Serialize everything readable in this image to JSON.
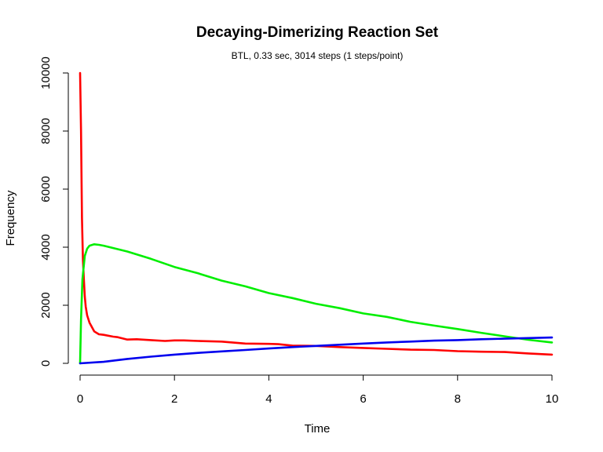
{
  "chart_data": {
    "type": "line",
    "title": "Decaying-Dimerizing Reaction Set",
    "subtitle": "BTL, 0.33 sec, 3014 steps (1 steps/point)",
    "xlabel": "Time",
    "ylabel": "Frequency",
    "xlim": [
      0,
      10
    ],
    "ylim": [
      0,
      10000
    ],
    "x_ticks": [
      "0",
      "2",
      "4",
      "6",
      "8",
      "10"
    ],
    "y_ticks": [
      "0",
      "2000",
      "4000",
      "6000",
      "8000",
      "10000"
    ],
    "grid": false,
    "legend": "none",
    "series": [
      {
        "color": "#ff0000",
        "points": [
          [
            0,
            10000
          ],
          [
            0.02,
            8000
          ],
          [
            0.04,
            5000
          ],
          [
            0.06,
            3600
          ],
          [
            0.08,
            2900
          ],
          [
            0.1,
            2300
          ],
          [
            0.12,
            1950
          ],
          [
            0.15,
            1650
          ],
          [
            0.2,
            1400
          ],
          [
            0.25,
            1250
          ],
          [
            0.3,
            1100
          ],
          [
            0.4,
            1000
          ],
          [
            0.5,
            980
          ],
          [
            0.7,
            920
          ],
          [
            0.8,
            900
          ],
          [
            1,
            820
          ],
          [
            1.2,
            830
          ],
          [
            1.5,
            800
          ],
          [
            1.8,
            770
          ],
          [
            2,
            790
          ],
          [
            2.2,
            790
          ],
          [
            2.5,
            770
          ],
          [
            3,
            750
          ],
          [
            3.5,
            680
          ],
          [
            4,
            670
          ],
          [
            4.2,
            660
          ],
          [
            4.5,
            610
          ],
          [
            5,
            600
          ],
          [
            5.5,
            560
          ],
          [
            6,
            530
          ],
          [
            6.5,
            500
          ],
          [
            7,
            470
          ],
          [
            7.5,
            460
          ],
          [
            8,
            420
          ],
          [
            8.5,
            400
          ],
          [
            9,
            390
          ],
          [
            9.5,
            340
          ],
          [
            10,
            300
          ]
        ]
      },
      {
        "color": "#00ee00",
        "points": [
          [
            0,
            0
          ],
          [
            0.02,
            1500
          ],
          [
            0.05,
            2900
          ],
          [
            0.1,
            3700
          ],
          [
            0.15,
            3950
          ],
          [
            0.2,
            4050
          ],
          [
            0.3,
            4100
          ],
          [
            0.4,
            4080
          ],
          [
            0.5,
            4050
          ],
          [
            1,
            3850
          ],
          [
            1.5,
            3600
          ],
          [
            2,
            3320
          ],
          [
            2.5,
            3100
          ],
          [
            3,
            2850
          ],
          [
            3.5,
            2650
          ],
          [
            4,
            2420
          ],
          [
            4.5,
            2250
          ],
          [
            5,
            2050
          ],
          [
            5.5,
            1900
          ],
          [
            6,
            1720
          ],
          [
            6.5,
            1600
          ],
          [
            7,
            1430
          ],
          [
            7.5,
            1300
          ],
          [
            8,
            1180
          ],
          [
            8.5,
            1050
          ],
          [
            9,
            930
          ],
          [
            9.5,
            810
          ],
          [
            10,
            720
          ]
        ]
      },
      {
        "color": "#0000ee",
        "points": [
          [
            0,
            0
          ],
          [
            0.5,
            50
          ],
          [
            1,
            150
          ],
          [
            1.5,
            230
          ],
          [
            2,
            300
          ],
          [
            2.5,
            360
          ],
          [
            3,
            410
          ],
          [
            3.5,
            460
          ],
          [
            4,
            510
          ],
          [
            4.5,
            560
          ],
          [
            5,
            600
          ],
          [
            5.5,
            640
          ],
          [
            6,
            680
          ],
          [
            6.5,
            720
          ],
          [
            7,
            750
          ],
          [
            7.5,
            780
          ],
          [
            8,
            800
          ],
          [
            8.5,
            830
          ],
          [
            9,
            850
          ],
          [
            9.5,
            870
          ],
          [
            10,
            890
          ]
        ]
      }
    ]
  }
}
